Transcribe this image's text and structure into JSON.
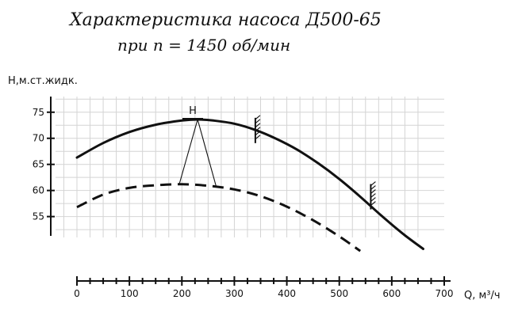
{
  "header": {
    "title": "Характеристика насоса Д500-65",
    "subtitle": "при n = 1450 об/мин"
  },
  "chart_data": {
    "type": "line",
    "xlabel": "Q, м³/ч",
    "ylabel": "H,м.ст.жидк.",
    "xlim": [
      0,
      700
    ],
    "ylim": [
      51,
      78
    ],
    "x_ticks": [
      0,
      100,
      200,
      300,
      400,
      500,
      600,
      700
    ],
    "y_ticks": [
      55,
      60,
      65,
      70,
      75
    ],
    "grid": true,
    "annotation": "H",
    "series": [
      {
        "style": "solid",
        "x": [
          0,
          50,
          100,
          150,
          200,
          230,
          260,
          300,
          340,
          380,
          420,
          460,
          500,
          540,
          580,
          620,
          660
        ],
        "y": [
          66.3,
          69.1,
          71.2,
          72.6,
          73.4,
          73.6,
          73.4,
          72.8,
          71.6,
          69.9,
          67.8,
          65.2,
          62.2,
          58.8,
          55.2,
          51.8,
          48.8
        ]
      },
      {
        "style": "dashed",
        "x": [
          0,
          50,
          100,
          150,
          200,
          250,
          300,
          350,
          400,
          450,
          500,
          540
        ],
        "y": [
          56.8,
          59.2,
          60.5,
          61.0,
          61.2,
          60.9,
          60.2,
          58.9,
          56.9,
          54.3,
          51.2,
          48.4
        ]
      }
    ],
    "markers": [
      {
        "x": 340,
        "y": 71.5
      },
      {
        "x": 560,
        "y": 58.8
      }
    ]
  }
}
